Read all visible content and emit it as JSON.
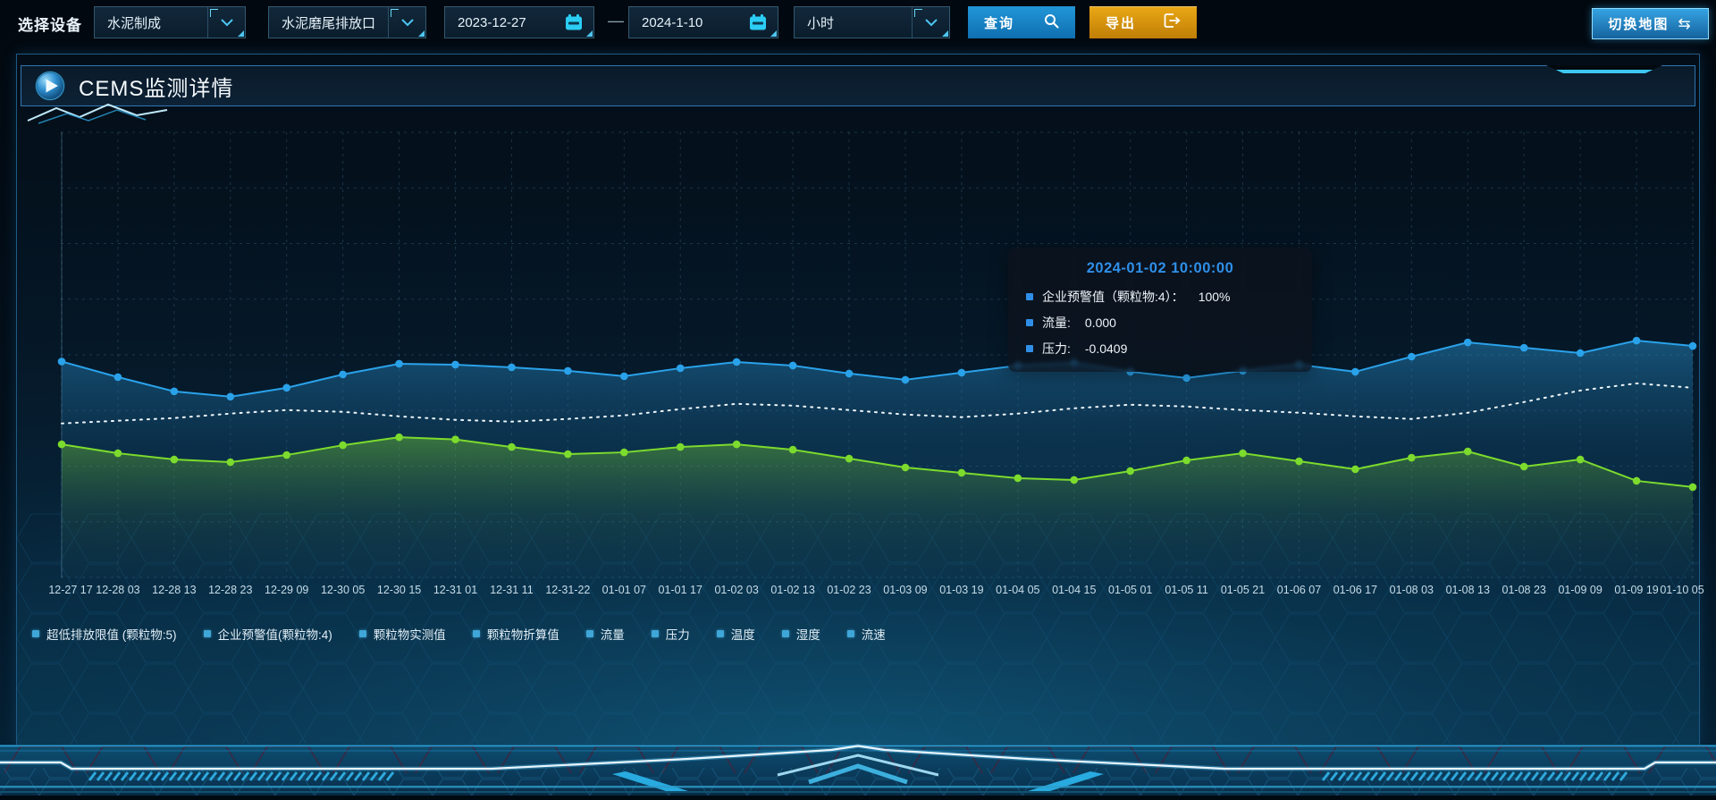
{
  "toolbar": {
    "device_label": "选择设备",
    "selects": [
      {
        "value": "水泥制成"
      },
      {
        "value": "水泥磨尾排放口"
      },
      {
        "value": "小时"
      }
    ],
    "date_start": "2023-12-27",
    "date_separator": "—",
    "date_end": "2024-1-10",
    "query_label": "查询",
    "export_label": "导出",
    "switch_map_label": "切换地图",
    "switch_map_glyph": "⇆"
  },
  "panel": {
    "title": "CEMS监测详情"
  },
  "tooltip": {
    "title": "2024-01-02 10:00:00",
    "rows": [
      {
        "label": "企业预警值（颗粒物:4）：",
        "value": "100%"
      },
      {
        "label": "流量:",
        "value": "0.000"
      },
      {
        "label": "压力:",
        "value": "-0.0409"
      }
    ]
  },
  "legend": {
    "marker_color": "#3fa6d8",
    "items": [
      "超低排放限值 (颗粒物:5)",
      "企业预警值(颗粒物:4)",
      "颗粒物实测值",
      "颗粒物折算值",
      "流量",
      "压力",
      "温度",
      "湿度",
      "流速"
    ]
  },
  "chart_data": {
    "type": "line",
    "title": "",
    "xlabel": "",
    "ylabel": "",
    "grid": true,
    "legend_position": "bottom",
    "y_axis": {
      "labels_visible": false,
      "scale": "normalized_0_100"
    },
    "x_labels": [
      "12-27 17",
      "12-28 03",
      "12-28 13",
      "12-28 23",
      "12-29 09",
      "12-30 05",
      "12-30 15",
      "12-31 01",
      "12-31 11",
      "12-31-22",
      "01-01 07",
      "01-01 17",
      "01-02 03",
      "01-02 13",
      "01-02 23",
      "01-03 09",
      "01-03 19",
      "01-04 05",
      "01-04 15",
      "01-05 01",
      "01-05 11",
      "01-05 21",
      "01-06 07",
      "01-06 17",
      "01-08 03",
      "01-08 13",
      "01-08 23",
      "01-09 09",
      "01-09 19",
      "01-10 05"
    ],
    "series": [
      {
        "name": "企业预警值(颗粒物:4)",
        "color": "#2aa2ea",
        "line_style": "solid",
        "markers": true,
        "area": true,
        "values": [
          48.5,
          45,
          41.8,
          40.6,
          42.6,
          45.6,
          48,
          47.8,
          47.2,
          46.4,
          45.2,
          47,
          48.4,
          47.6,
          45.8,
          44.4,
          46,
          47.6,
          48.2,
          46.2,
          44.8,
          46.4,
          47.8,
          46.2,
          49.6,
          52.8,
          51.6,
          50.4,
          53.2,
          52
        ]
      },
      {
        "name": "流量",
        "color": "#edf6fb",
        "line_style": "dotted",
        "markers": false,
        "area": false,
        "values": [
          34.6,
          35.2,
          35.8,
          36.8,
          37.6,
          37.2,
          36.2,
          35.4,
          35,
          35.6,
          36.4,
          37.8,
          39,
          38.6,
          37.6,
          36.6,
          36,
          36.8,
          38,
          38.8,
          38.4,
          37.6,
          37,
          36.2,
          35.6,
          37,
          39.4,
          42,
          43.6,
          42.6
        ]
      },
      {
        "name": "压力",
        "color": "#7cdb2d",
        "line_style": "solid",
        "markers": true,
        "area": true,
        "values": [
          29.9,
          27.9,
          26.5,
          25.9,
          27.5,
          29.7,
          31.5,
          31,
          29.3,
          27.7,
          28.1,
          29.3,
          29.9,
          28.7,
          26.7,
          24.7,
          23.5,
          22.3,
          21.9,
          23.9,
          26.3,
          27.9,
          26.1,
          24.3,
          26.9,
          28.3,
          24.9,
          26.5,
          21.7,
          20.3
        ]
      }
    ]
  },
  "colors": {
    "accent_cyan": "#3cc7f1",
    "button_blue": "#1789cd",
    "button_orange": "#d8930f",
    "panel_border": "#1e5a84",
    "tooltip_title": "#2f8fe8",
    "grid_line": "#5a9cbe"
  }
}
